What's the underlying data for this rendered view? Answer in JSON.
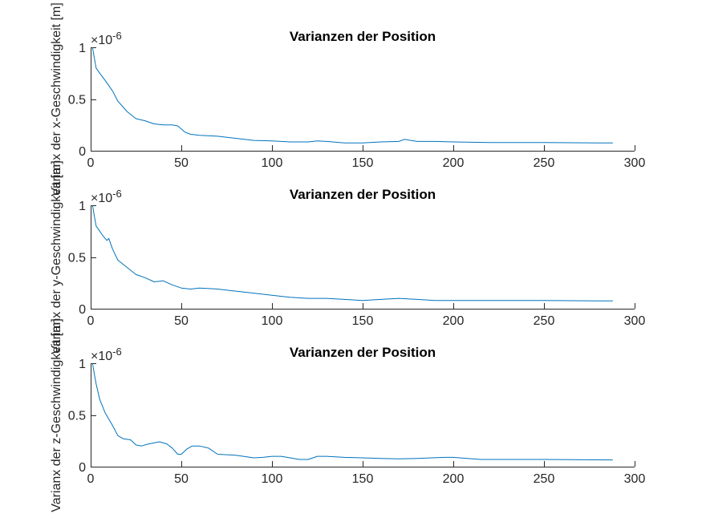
{
  "chart_data": [
    {
      "type": "line",
      "title": "Varianzen der Position",
      "ylabel": "Varianx der x-Geschwindigkeit [m]",
      "xlim": [
        0,
        300
      ],
      "ylim": [
        0,
        1
      ],
      "xticks": [
        0,
        50,
        100,
        150,
        200,
        250,
        300
      ],
      "yticks": [
        0,
        0.5,
        1
      ],
      "xtick_labels": [
        "0",
        "50",
        "100",
        "150",
        "200",
        "250",
        "300"
      ],
      "ytick_labels": [
        "0",
        "0.5",
        "1"
      ],
      "y_multiplier": {
        "base": "×10",
        "exponent": "-6"
      },
      "grid": false,
      "series": [
        {
          "color": "#0072BD",
          "x": [
            1,
            2,
            3,
            5,
            8,
            12,
            15,
            20,
            25,
            30,
            35,
            40,
            45,
            48,
            50,
            52,
            55,
            60,
            70,
            80,
            90,
            100,
            110,
            120,
            125,
            130,
            140,
            150,
            160,
            170,
            173,
            180,
            190,
            200,
            220,
            250,
            280,
            288
          ],
          "y": [
            1.0,
            0.9,
            0.8,
            0.75,
            0.68,
            0.58,
            0.48,
            0.38,
            0.31,
            0.29,
            0.26,
            0.25,
            0.25,
            0.24,
            0.21,
            0.18,
            0.16,
            0.15,
            0.14,
            0.12,
            0.1,
            0.095,
            0.085,
            0.085,
            0.095,
            0.09,
            0.075,
            0.075,
            0.085,
            0.09,
            0.11,
            0.09,
            0.09,
            0.085,
            0.08,
            0.08,
            0.075,
            0.075
          ]
        }
      ]
    },
    {
      "type": "line",
      "title": "Varianzen der Position",
      "ylabel": "Varianx der y-Geschwindigkeit [m]",
      "xlim": [
        0,
        300
      ],
      "ylim": [
        0,
        1
      ],
      "xticks": [
        0,
        50,
        100,
        150,
        200,
        250,
        300
      ],
      "yticks": [
        0,
        0.5,
        1
      ],
      "xtick_labels": [
        "0",
        "50",
        "100",
        "150",
        "200",
        "250",
        "300"
      ],
      "ytick_labels": [
        "0",
        "0.5",
        "1"
      ],
      "y_multiplier": {
        "base": "×10",
        "exponent": "-6"
      },
      "grid": false,
      "series": [
        {
          "color": "#0072BD",
          "x": [
            1,
            2,
            3,
            5,
            7,
            9,
            10,
            12,
            15,
            20,
            25,
            30,
            35,
            40,
            45,
            50,
            55,
            60,
            70,
            80,
            90,
            100,
            110,
            120,
            130,
            140,
            150,
            160,
            170,
            180,
            190,
            200,
            220,
            250,
            280,
            288
          ],
          "y": [
            1.0,
            0.9,
            0.8,
            0.75,
            0.7,
            0.66,
            0.68,
            0.58,
            0.47,
            0.4,
            0.33,
            0.3,
            0.26,
            0.27,
            0.23,
            0.2,
            0.19,
            0.2,
            0.19,
            0.17,
            0.15,
            0.13,
            0.11,
            0.1,
            0.1,
            0.09,
            0.08,
            0.09,
            0.1,
            0.09,
            0.08,
            0.08,
            0.08,
            0.08,
            0.075,
            0.075
          ]
        }
      ]
    },
    {
      "type": "line",
      "title": "Varianzen der Position",
      "ylabel": "Varianx der z-Geschwindigkeit [m]",
      "xlim": [
        0,
        300
      ],
      "ylim": [
        0,
        1
      ],
      "xticks": [
        0,
        50,
        100,
        150,
        200,
        250,
        300
      ],
      "yticks": [
        0,
        0.5,
        1
      ],
      "xtick_labels": [
        "0",
        "50",
        "100",
        "150",
        "200",
        "250",
        "300"
      ],
      "ytick_labels": [
        "0",
        "0.5",
        "1"
      ],
      "y_multiplier": {
        "base": "×10",
        "exponent": "-6"
      },
      "grid": false,
      "series": [
        {
          "color": "#0072BD",
          "x": [
            1,
            2,
            3,
            5,
            8,
            12,
            15,
            18,
            22,
            25,
            28,
            32,
            38,
            42,
            45,
            48,
            50,
            53,
            56,
            60,
            65,
            70,
            80,
            90,
            95,
            100,
            105,
            110,
            115,
            120,
            125,
            130,
            140,
            150,
            160,
            170,
            180,
            195,
            200,
            215,
            250,
            288
          ],
          "y": [
            1.0,
            0.9,
            0.8,
            0.65,
            0.52,
            0.4,
            0.3,
            0.27,
            0.26,
            0.21,
            0.2,
            0.22,
            0.24,
            0.22,
            0.18,
            0.12,
            0.12,
            0.17,
            0.2,
            0.2,
            0.18,
            0.12,
            0.11,
            0.085,
            0.09,
            0.1,
            0.1,
            0.085,
            0.07,
            0.07,
            0.1,
            0.1,
            0.09,
            0.085,
            0.08,
            0.075,
            0.08,
            0.09,
            0.09,
            0.07,
            0.07,
            0.065
          ]
        }
      ]
    }
  ]
}
